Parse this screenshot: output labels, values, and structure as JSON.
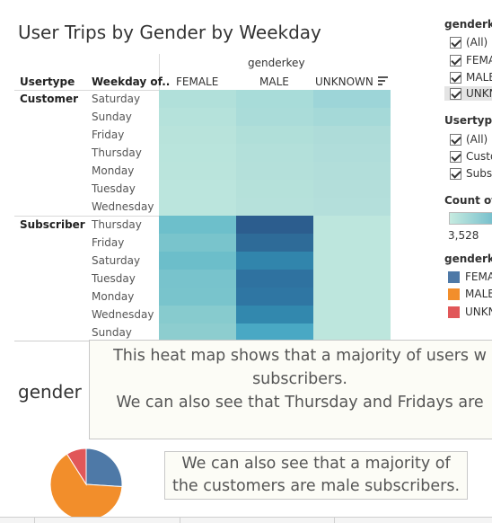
{
  "title": "User Trips by Gender by Weekday",
  "headers": {
    "genderkey": "genderkey",
    "usertype": "Usertype",
    "weekday": "Weekday of..",
    "female": "FEMALE",
    "male": "MALE",
    "unknown": "UNKNOWN"
  },
  "heatmap": {
    "groups": [
      {
        "label": "Customer",
        "days": [
          "Saturday",
          "Sunday",
          "Friday",
          "Thursday",
          "Monday",
          "Tuesday",
          "Wednesday"
        ],
        "colors": [
          [
            "#b1e0da",
            "#a8dcd9",
            "#9dd5d8"
          ],
          [
            "#b5e2db",
            "#aadcd9",
            "#a5d9d8"
          ],
          [
            "#b8e3db",
            "#b0dfd9",
            "#aedcd9"
          ],
          [
            "#b9e4dc",
            "#b3e0da",
            "#b0ddda"
          ],
          [
            "#bae4dc",
            "#b4e0da",
            "#b2deda"
          ],
          [
            "#bbe5dd",
            "#b5e1da",
            "#b3deda"
          ],
          [
            "#bbe5dd",
            "#b6e1db",
            "#b4dfdb"
          ]
        ]
      },
      {
        "label": "Subscriber",
        "days": [
          "Thursday",
          "Friday",
          "Saturday",
          "Tuesday",
          "Monday",
          "Wednesday",
          "Sunday"
        ],
        "colors": [
          [
            "#6dbfcb",
            "#2c5d8e",
            "#bde6dd"
          ],
          [
            "#79c4cc",
            "#2e6b98",
            "#bde6dd"
          ],
          [
            "#6cbeca",
            "#3185ac",
            "#bde6dd"
          ],
          [
            "#78c3cc",
            "#2f72a0",
            "#bde6dd"
          ],
          [
            "#79c4cc",
            "#2f76a3",
            "#bde6dd"
          ],
          [
            "#87cbce",
            "#3288ae",
            "#bde6dd"
          ],
          [
            "#8dcdcf",
            "#49a8c4",
            "#bde6dd"
          ]
        ]
      }
    ]
  },
  "filters": {
    "gender_title": "genderke",
    "gender_items": [
      {
        "label": "(All)",
        "selected": false
      },
      {
        "label": "FEMA",
        "selected": false
      },
      {
        "label": "MALE",
        "selected": false
      },
      {
        "label": "UNKN",
        "selected": true
      }
    ],
    "usertype_title": "Usertype",
    "usertype_items": [
      {
        "label": "(All)"
      },
      {
        "label": "Custo"
      },
      {
        "label": "Subs"
      }
    ],
    "count_title": "Count of d",
    "count_min": "3,528",
    "legend_title": "genderke",
    "legend_items": [
      {
        "label": "FEMA",
        "color": "#4e79a7"
      },
      {
        "label": "MALE",
        "color": "#f28e2b"
      },
      {
        "label": "UNKN",
        "color": "#e15759"
      }
    ]
  },
  "gender_label": "gender",
  "note1_lines": [
    "This heat map shows that a majority of users w",
    "subscribers.",
    "We can also see that Thursday and Fridays are"
  ],
  "note2_lines": [
    "We can also see that a majority of",
    "the customers are male subscribers."
  ],
  "pie": {
    "slices": [
      {
        "name": "FEMALE",
        "fraction": 0.26,
        "color": "#4e79a7"
      },
      {
        "name": "MALE",
        "fraction": 0.65,
        "color": "#f28e2b"
      },
      {
        "name": "UNKNOWN",
        "fraction": 0.09,
        "color": "#e15759"
      }
    ]
  }
}
